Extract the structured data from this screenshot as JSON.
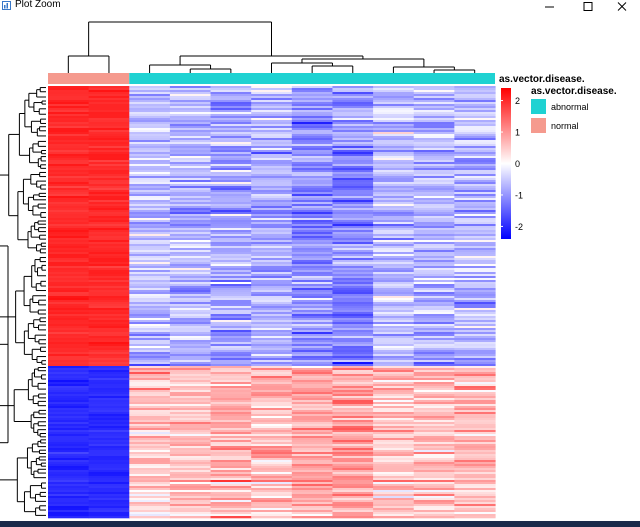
{
  "window": {
    "title": "Plot Zoom",
    "icon": "plot-zoom-icon",
    "controls": [
      "minimize-icon",
      "maximize-icon",
      "close-icon"
    ]
  },
  "colors": {
    "heat_low": "#0000ff",
    "heat_mid": "#ffffff",
    "heat_high": "#ff0000",
    "abnormal": "#1fd2d2",
    "normal": "#f59a8e",
    "taskbar": "#1a2a4a"
  },
  "chart_data": {
    "type": "heatmap",
    "title": "",
    "annotation_track_label": "as.vector.disease.",
    "columns": 11,
    "column_groups": [
      "normal",
      "normal",
      "abnormal",
      "abnormal",
      "abnormal",
      "abnormal",
      "abnormal",
      "abnormal",
      "abnormal",
      "abnormal",
      "abnormal"
    ],
    "row_clusters": [
      {
        "name": "upper",
        "approx_fraction": 0.65,
        "normal_value": 2.0,
        "abnormal_value": -0.5
      },
      {
        "name": "lower",
        "approx_fraction": 0.35,
        "normal_value": -2.0,
        "abnormal_value": 0.5
      }
    ],
    "value_range": [
      -2.4,
      2.4
    ],
    "color_legend": {
      "ticks": [
        2,
        1,
        0,
        -1,
        -2
      ],
      "tick_labels": [
        "2",
        "1",
        "0",
        "-1",
        "-2"
      ]
    },
    "group_legend": {
      "title": "as.vector.disease.",
      "entries": [
        {
          "label": "abnormal",
          "color": "#1fd2d2"
        },
        {
          "label": "normal",
          "color": "#f59a8e"
        }
      ]
    }
  }
}
